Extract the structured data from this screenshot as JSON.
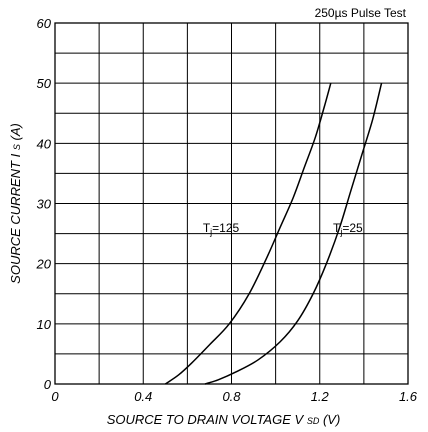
{
  "chart_data": {
    "type": "line",
    "annotation": "250µs Pulse Test",
    "ylabel": {
      "main": "SOURCE CURRENT",
      "symbol": "I",
      "subscript": "S",
      "unit": "(A)"
    },
    "xlabel": {
      "main": "SOURCE TO DRAIN VOLTAGE",
      "symbol": "V",
      "subscript": "SD",
      "unit": "(V)"
    },
    "xlim": [
      0,
      1.6
    ],
    "ylim": [
      0,
      60
    ],
    "x_ticks": [
      "0",
      "0.4",
      "0.8",
      "1.2",
      "1.6"
    ],
    "y_ticks": [
      "0",
      "10",
      "20",
      "30",
      "40",
      "50",
      "60"
    ],
    "grid": true,
    "series": [
      {
        "name": "Tj=125",
        "label_parts": {
          "pre": "T",
          "sub": "j",
          "post": "=125"
        },
        "x": [
          0.5,
          0.56,
          0.62,
          0.7,
          0.79,
          0.88,
          0.96,
          1.02,
          1.08,
          1.13,
          1.18,
          1.22,
          1.25
        ],
        "y": [
          0,
          1.5,
          3.5,
          6.5,
          10,
          15,
          21,
          26,
          31,
          36,
          41,
          46,
          50
        ]
      },
      {
        "name": "Tj=25",
        "label_parts": {
          "pre": "T",
          "sub": "j",
          "post": "=25"
        },
        "x": [
          0.68,
          0.74,
          0.82,
          0.92,
          1.02,
          1.1,
          1.17,
          1.23,
          1.29,
          1.34,
          1.39,
          1.44,
          1.48
        ],
        "y": [
          0,
          0.7,
          2,
          4,
          7,
          10.5,
          15,
          20,
          26,
          32,
          38,
          44,
          50
        ]
      }
    ]
  }
}
